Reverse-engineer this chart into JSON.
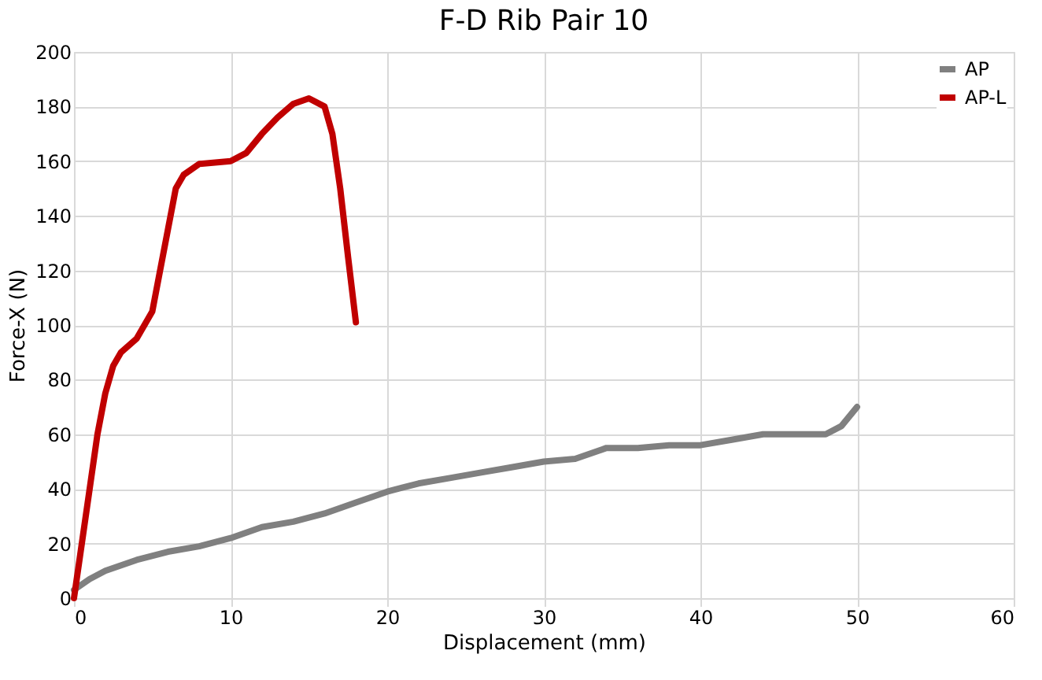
{
  "chart_data": {
    "type": "line",
    "title": "F-D Rib Pair 10",
    "xlabel": "Displacement (mm)",
    "ylabel": "Force-X (N)",
    "xlim": [
      0,
      60
    ],
    "xticks": [
      0,
      10,
      20,
      30,
      40,
      50,
      60
    ],
    "ylim": [
      0,
      200
    ],
    "yticks": [
      0,
      20,
      40,
      60,
      80,
      100,
      120,
      140,
      160,
      180,
      200
    ],
    "grid": true,
    "legend": "top right",
    "marker": "none",
    "line_style": "solid",
    "series": [
      {
        "name": "AP",
        "color": "#808080",
        "x": [
          0,
          1,
          2,
          4,
          6,
          8,
          10,
          12,
          14,
          16,
          18,
          20,
          22,
          24,
          26,
          28,
          30,
          32,
          34,
          36,
          38,
          40,
          42,
          44,
          46,
          48,
          49,
          50
        ],
        "values": [
          3,
          7,
          10,
          14,
          17,
          19,
          22,
          26,
          28,
          31,
          35,
          39,
          42,
          44,
          46,
          48,
          50,
          51,
          55,
          55,
          56,
          56,
          58,
          60,
          60,
          60,
          63,
          70
        ]
      },
      {
        "name": "AP-L",
        "color": "#c00000",
        "x": [
          0,
          0.5,
          1,
          1.5,
          2,
          2.5,
          3,
          4,
          5,
          5.5,
          6,
          6.5,
          7,
          8,
          10,
          11,
          12,
          13,
          14,
          15,
          16,
          16.5,
          17,
          17.5,
          18
        ],
        "values": [
          0,
          20,
          40,
          60,
          75,
          85,
          90,
          95,
          105,
          120,
          135,
          150,
          155,
          159,
          160,
          163,
          170,
          176,
          181,
          183,
          180,
          170,
          150,
          125,
          101
        ]
      }
    ]
  }
}
